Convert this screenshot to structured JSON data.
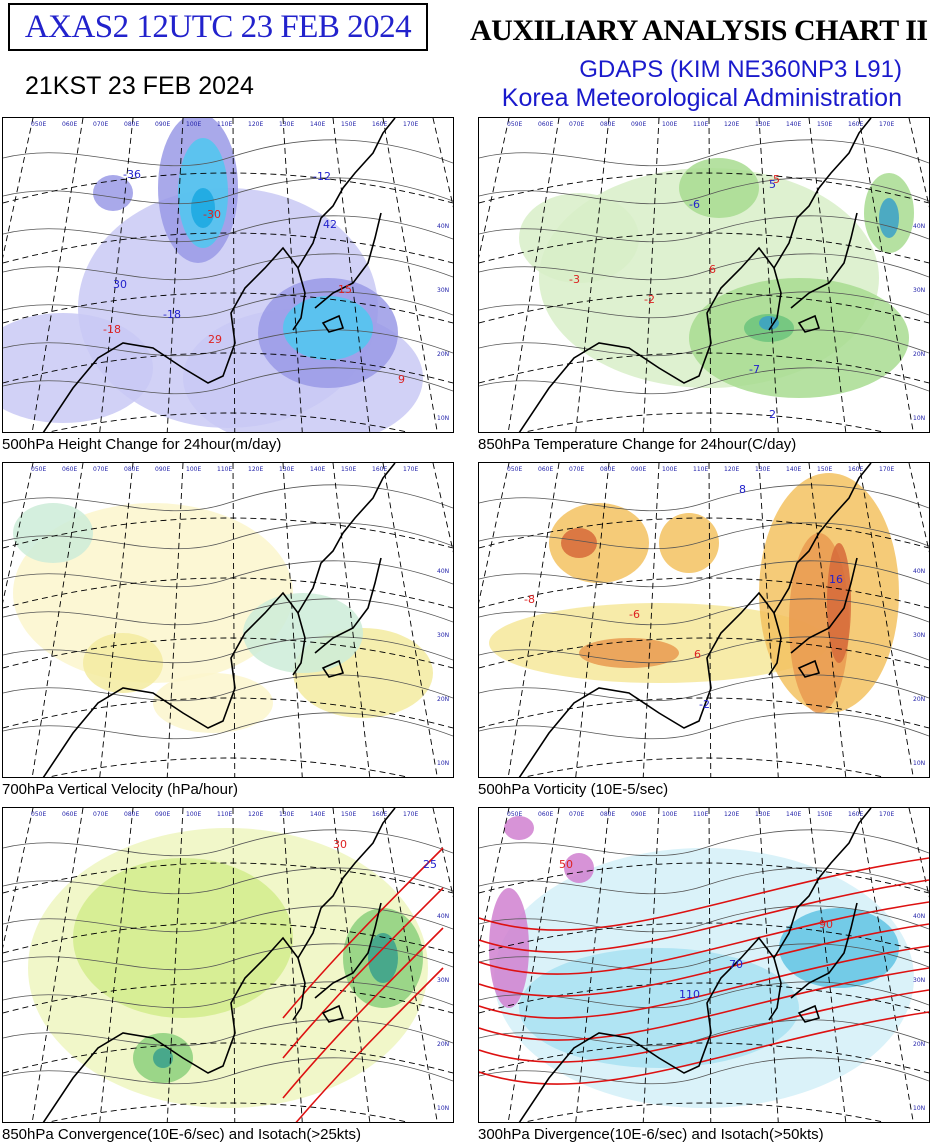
{
  "header": {
    "product_id": "AXAS2  12UTC 23 FEB 2024",
    "local_time": "21KST 23 FEB 2024",
    "chart_title": "AUXILIARY ANALYSIS CHART II",
    "model": "GDAPS (KIM NE360NP3 L91)",
    "agency": "Korea Meteorological Administration"
  },
  "panels": [
    {
      "caption": "500hPa Height Change for 24hour(m/day)",
      "fill_colors": [
        "#c9c9f4",
        "#9a9ae6",
        "#4fc8f0",
        "#1aa8e0"
      ],
      "labels": [
        "-18",
        "-18",
        "29",
        "30",
        "9",
        "-12",
        "15",
        "-36",
        "-30",
        "42"
      ],
      "lon_labels": [
        "050E",
        "060E",
        "070E",
        "080E",
        "090E",
        "100E",
        "110E",
        "120E",
        "130E",
        "140E",
        "150E",
        "160E",
        "170E"
      ],
      "lat_labels": [
        "40N",
        "30N",
        "20N",
        "10N"
      ]
    },
    {
      "caption": "850hPa Temperature Change for 24hour(C/day)",
      "fill_colors": [
        "#d8efc8",
        "#a8dc90",
        "#6cc47c",
        "#3aa0c8"
      ],
      "labels": [
        "-3",
        "-6",
        "-5",
        "-7",
        "6",
        "5",
        "-2",
        "2"
      ],
      "lon_labels": [
        "050E",
        "060E",
        "070E",
        "080E",
        "090E",
        "100E",
        "110E",
        "120E",
        "130E",
        "140E",
        "150E",
        "160E",
        "170E"
      ],
      "lat_labels": [
        "40N",
        "30N",
        "20N",
        "10N"
      ]
    },
    {
      "caption": "700hPa Vertical Velocity (hPa/hour)",
      "fill_colors": [
        "#fbf6cc",
        "#f3eba0",
        "#ccecd8",
        "#a9dcd0"
      ],
      "labels": [],
      "lon_labels": [
        "050E",
        "060E",
        "070E",
        "080E",
        "090E",
        "100E",
        "110E",
        "120E",
        "130E",
        "140E",
        "150E",
        "160E",
        "170E"
      ],
      "lat_labels": [
        "40N",
        "30N",
        "20N",
        "10N"
      ]
    },
    {
      "caption": "500hPa Vorticity (10E-5/sec)",
      "fill_colors": [
        "#f6e89a",
        "#f3c260",
        "#e99a50",
        "#d66a3a"
      ],
      "labels": [
        "-8",
        "8",
        "-6",
        "16",
        "6",
        "-2"
      ],
      "lon_labels": [
        "050E",
        "060E",
        "070E",
        "080E",
        "090E",
        "100E",
        "110E",
        "120E",
        "130E",
        "140E",
        "150E",
        "160E",
        "170E"
      ],
      "lat_labels": [
        "40N",
        "30N",
        "20N",
        "10N"
      ]
    },
    {
      "caption": "850hPa Convergence(10E-6/sec) and Isotach(>25kts)",
      "fill_colors": [
        "#eef6c0",
        "#d2ec8c",
        "#8cd07c",
        "#3aa08c"
      ],
      "labels": [
        "30",
        "25"
      ],
      "lon_labels": [
        "050E",
        "060E",
        "070E",
        "080E",
        "090E",
        "100E",
        "110E",
        "120E",
        "130E",
        "140E",
        "150E",
        "160E",
        "170E"
      ],
      "lat_labels": [
        "40N",
        "30N",
        "20N",
        "10N"
      ]
    },
    {
      "caption": "300hPa Divergence(10E-6/sec) and Isotach(>50kts)",
      "fill_colors": [
        "#d4f0f8",
        "#a8e2f2",
        "#60c4e4",
        "#d080d0"
      ],
      "labels": [
        "50",
        "70",
        "90",
        "110"
      ],
      "lon_labels": [
        "050E",
        "060E",
        "070E",
        "080E",
        "090E",
        "100E",
        "110E",
        "120E",
        "130E",
        "140E",
        "150E",
        "160E",
        "170E"
      ],
      "lat_labels": [
        "40N",
        "30N",
        "20N",
        "10N"
      ]
    }
  ]
}
